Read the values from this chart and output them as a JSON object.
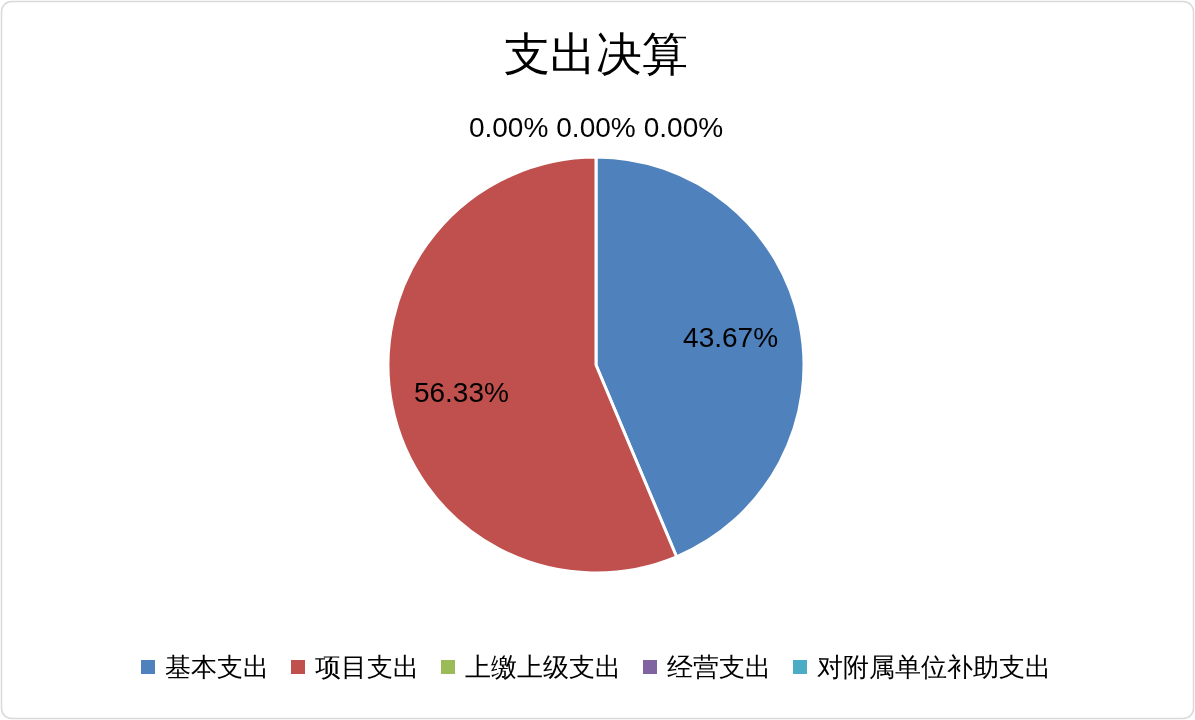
{
  "chart_data": {
    "type": "pie",
    "title": "支出决算",
    "categories": [
      "基本支出",
      "项目支出",
      "上缴上级支出",
      "经营支出",
      "对附属单位补助支出"
    ],
    "values": [
      43.67,
      56.33,
      0,
      0,
      0
    ],
    "colors": [
      "#4f81bd",
      "#c0504d",
      "#9bbb59",
      "#8064a2",
      "#4bacc6"
    ],
    "value_labels": [
      "43.67%",
      "56.33%",
      "0.00%",
      "0.00%",
      "0.00%"
    ],
    "legend": "bottom"
  }
}
